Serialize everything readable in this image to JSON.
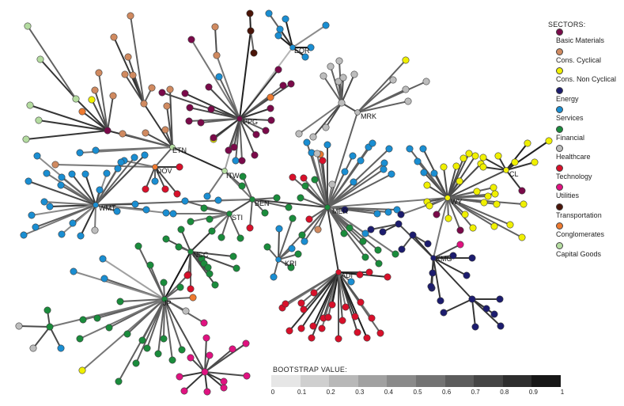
{
  "colors": {
    "Basic Materials": "#7a0a4a",
    "Cons. Cyclical": "#d08a60",
    "Cons. Non Cyclical": "#f0f000",
    "Energy": "#1c1c6e",
    "Services": "#1a8ed2",
    "Financial": "#1a8c3c",
    "Healthcare": "#bdbdbd",
    "Technology": "#d8102a",
    "Utilities": "#e01280",
    "Transportation": "#4a1408",
    "Conglomerates": "#ee7a30",
    "Capital Goods": "#b4dca0"
  },
  "legend": {
    "title": "SECTORS:",
    "items": [
      "Basic Materials",
      "Cons. Cyclical",
      "Cons. Non Cyclical",
      "Energy",
      "Services",
      "Financial",
      "Healthcare",
      "Technology",
      "Utilities",
      "Transportation",
      "Conglomerates",
      "Capital Goods"
    ]
  },
  "scale": {
    "title": "BOOTSTRAP VALUE:",
    "ticks": [
      "0",
      "0.1",
      "0.2",
      "0.3",
      "0.4",
      "0.5",
      "0.6",
      "0.7",
      "0.8",
      "0.9",
      "1"
    ]
  },
  "hub_labels": [
    "EQR",
    "PPG",
    "MRK",
    "ETN",
    "DOV",
    "ITW",
    "WMT",
    "BEN",
    "STI",
    "MER",
    "WY",
    "CL",
    "NCC",
    "KRI",
    "KMG",
    "ADI",
    "JP"
  ]
}
